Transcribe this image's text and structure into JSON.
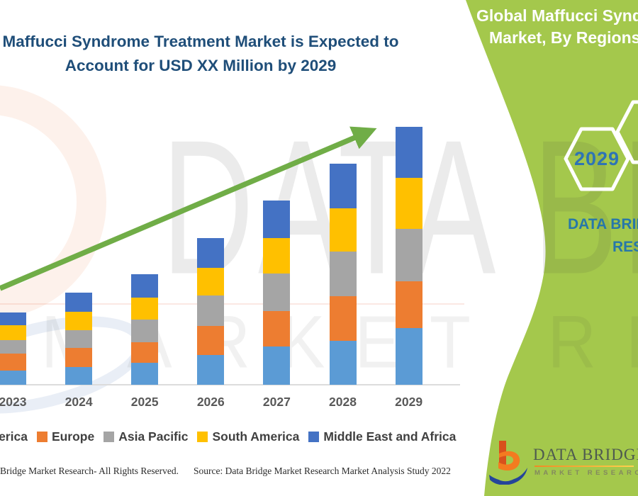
{
  "title": {
    "line1": "Maffucci Syndrome Treatment Market is Expected to",
    "line2": "Account for USD XX Million by 2029",
    "color": "#1F4E79"
  },
  "banner": {
    "heading_line1": "Global Maffucci Syndrome",
    "heading_line2": "Market, By Regions,",
    "hexagon_year": "2029",
    "brand_line1": "DATA BRIDGE",
    "brand_line2": "RESEARCH",
    "green_color": "#A4C84C",
    "heading_text_color": "#FFFFFF",
    "hexagon_year_color": "#2E74B5"
  },
  "watermark": {
    "line1": "DATA BRIDGE",
    "line2": "MARKET RESEARCH"
  },
  "footer": {
    "left": "Bridge Market Research- All Rights Reserved.",
    "right": "Source: Data Bridge Market Research Market Analysis Study 2022"
  },
  "logo": {
    "brand": "DATA BRIDGE",
    "tagline": "MARKET RESEARCH"
  },
  "chart_data": {
    "type": "bar",
    "stacked": true,
    "title": "",
    "xlabel": "",
    "ylabel": "",
    "y_axis_visible": false,
    "gridlines": false,
    "legend_position": "bottom",
    "units": "relative height (y-axis not labeled, values shown as XX Million)",
    "categories": [
      "2023",
      "2024",
      "2025",
      "2026",
      "2027",
      "2028",
      "2029"
    ],
    "series": [
      {
        "name": "North America",
        "color": "#5B9BD5",
        "values": [
          20,
          25,
          31,
          42,
          54,
          62,
          80
        ]
      },
      {
        "name": "Europe",
        "color": "#ED7D31",
        "values": [
          24,
          27,
          29,
          41,
          50,
          63,
          66
        ]
      },
      {
        "name": "Asia Pacific",
        "color": "#A5A5A5",
        "values": [
          19,
          25,
          32,
          43,
          53,
          63,
          74
        ]
      },
      {
        "name": "South America",
        "color": "#FFC000",
        "values": [
          21,
          26,
          31,
          39,
          50,
          61,
          72
        ]
      },
      {
        "name": "Middle East and Africa",
        "color": "#4472C4",
        "values": [
          18,
          27,
          33,
          42,
          53,
          63,
          72
        ]
      }
    ],
    "trend_arrow": {
      "present": true,
      "color": "#70AD47",
      "direction": "up-right"
    }
  }
}
